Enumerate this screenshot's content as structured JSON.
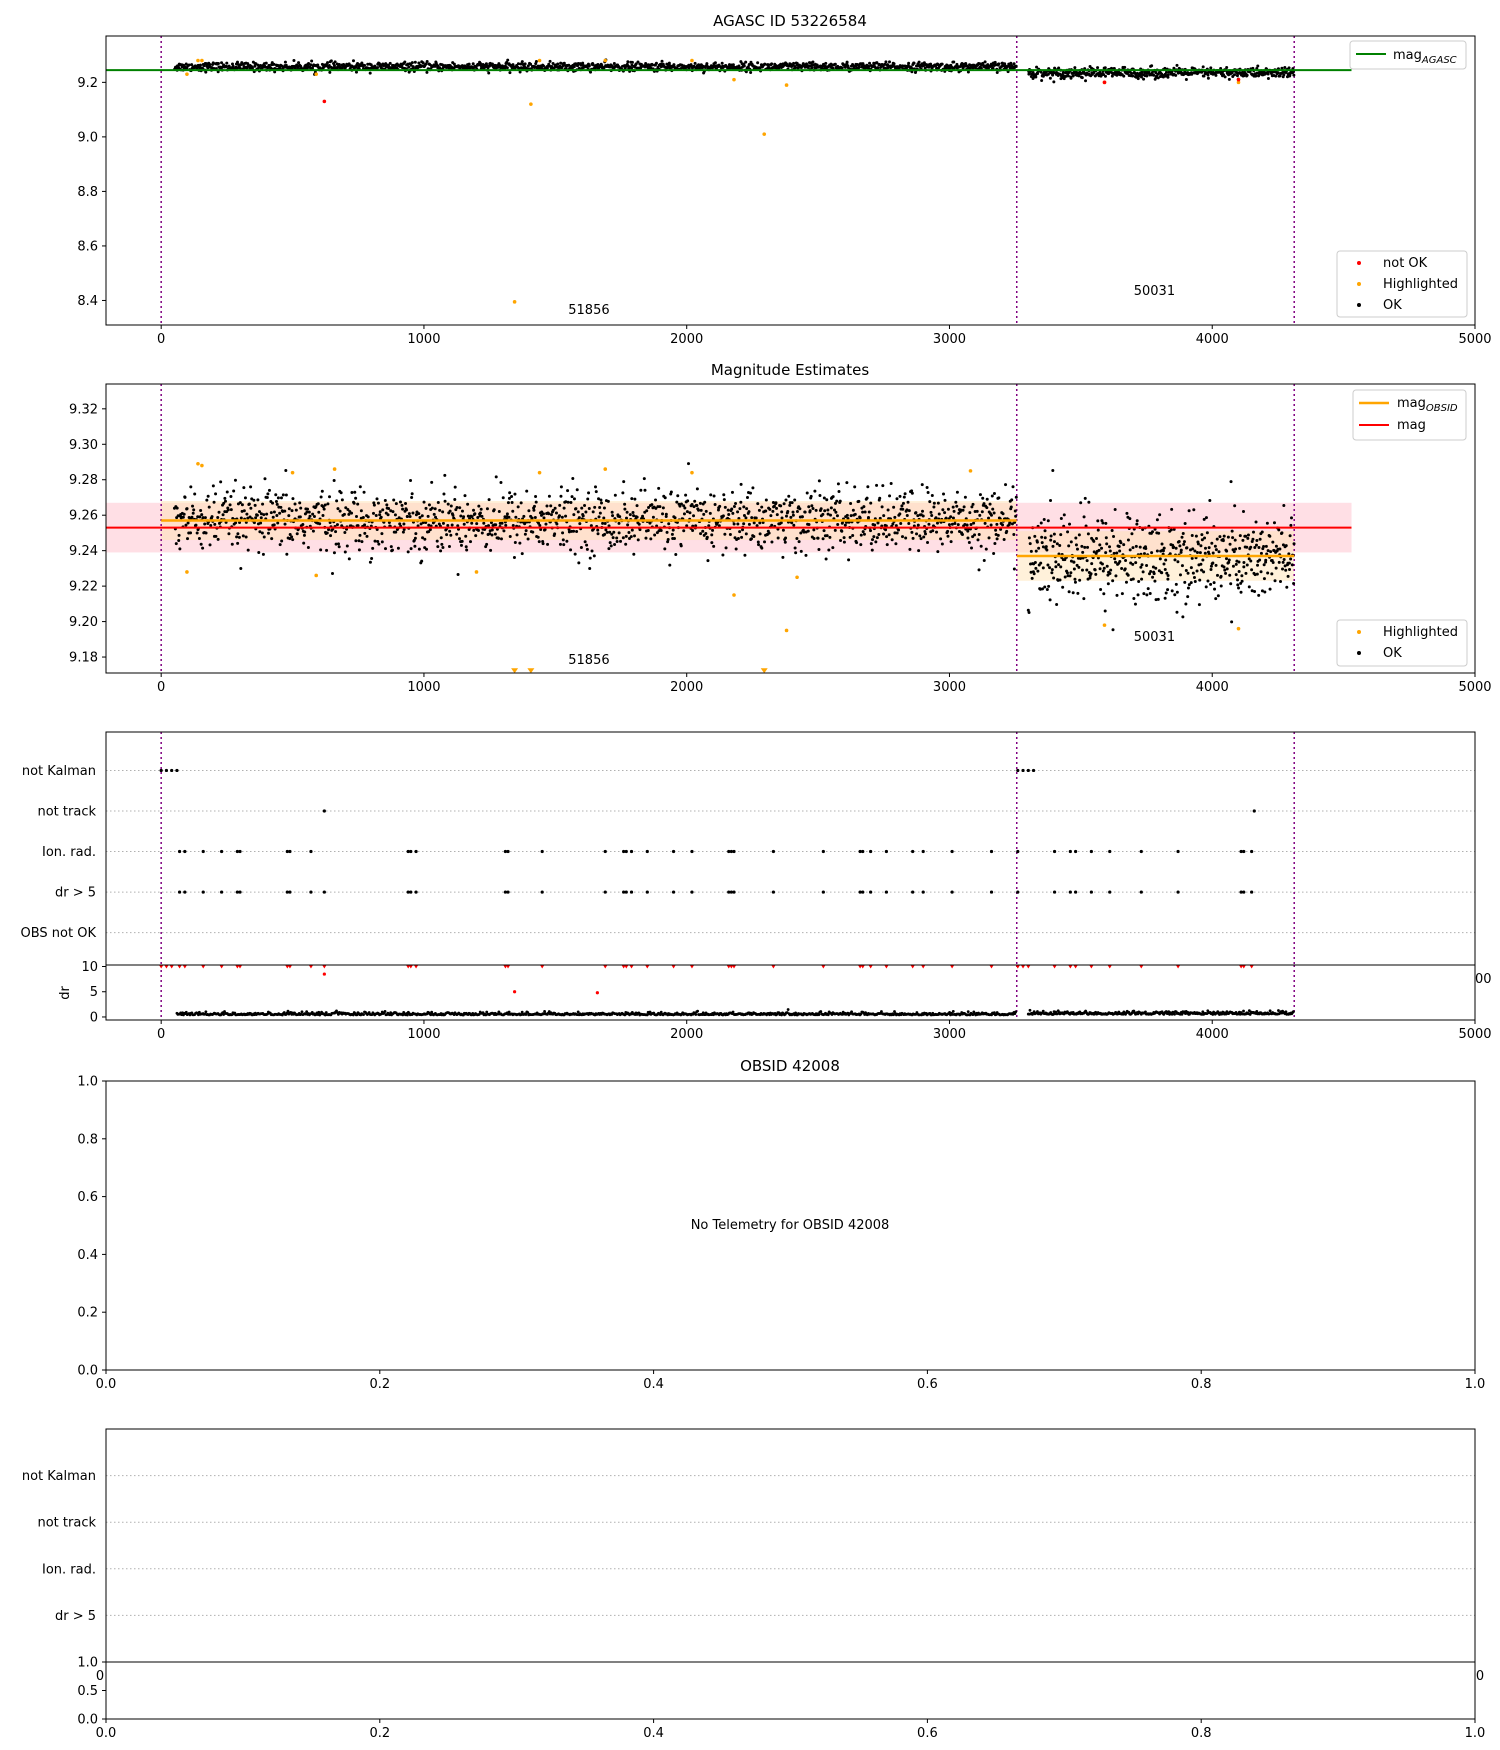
{
  "figure": {
    "background": "#ffffff"
  },
  "colors": {
    "ok": "#000000",
    "not_ok": "#ff0000",
    "highlighted": "#ffa500",
    "mag_agasc": "#008000",
    "mag": "#ff0000",
    "mag_obsid": "#ffa500",
    "vline": "#800080",
    "band_mag": "#ffc0cb",
    "band_obsid": "#ffe4b5",
    "grid": "#b0b0b0"
  },
  "chart_data": [
    {
      "type": "scatter",
      "title": "AGASC ID 53226584",
      "xlim": [
        -210,
        5000
      ],
      "ylim": [
        8.31,
        9.37
      ],
      "xticks": [
        0,
        1000,
        2000,
        3000,
        4000,
        5000
      ],
      "yticks": [
        8.4,
        8.6,
        8.8,
        9.0,
        9.2
      ],
      "vlines": [
        0,
        3256,
        4312
      ],
      "obsid_labels": [
        {
          "text": "51856",
          "x": 1628,
          "y": 8.35
        },
        {
          "text": "50031",
          "x": 3780,
          "y": 8.42
        }
      ],
      "lines": [
        {
          "name": "mag_AGASC",
          "y": 9.245,
          "x_range": [
            -210,
            4530
          ]
        }
      ],
      "segments": [
        {
          "x_range": [
            50,
            3256
          ],
          "mean": 9.257,
          "std": 0.008
        },
        {
          "x_range": [
            3300,
            4312
          ],
          "mean": 9.235,
          "std": 0.01
        }
      ],
      "series": [
        {
          "name": "not OK",
          "points": [
            [
              621,
              9.13
            ],
            [
              3590,
              9.2
            ],
            [
              4100,
              9.21
            ]
          ]
        },
        {
          "name": "Highlighted",
          "points": [
            [
              98,
              9.23
            ],
            [
              140,
              9.28
            ],
            [
              155,
              9.28
            ],
            [
              590,
              9.23
            ],
            [
              1345,
              8.395
            ],
            [
              1407,
              9.12
            ],
            [
              1440,
              9.28
            ],
            [
              1690,
              9.28
            ],
            [
              2020,
              9.28
            ],
            [
              2180,
              9.21
            ],
            [
              2295,
              9.01
            ],
            [
              2380,
              9.19
            ],
            [
              3590,
              9.2
            ],
            [
              4100,
              9.2
            ]
          ]
        },
        {
          "name": "OK",
          "points": []
        }
      ],
      "legend": {
        "upper": [
          {
            "label": "mag",
            "subscript": "AGASC",
            "kind": "line",
            "color_key": "mag_agasc"
          }
        ],
        "lower": [
          {
            "label": "not OK",
            "kind": "dot",
            "color_key": "not_ok"
          },
          {
            "label": "Highlighted",
            "kind": "dot",
            "color_key": "highlighted"
          },
          {
            "label": "OK",
            "kind": "dot",
            "color_key": "ok"
          }
        ]
      }
    },
    {
      "type": "scatter",
      "title": "Magnitude Estimates",
      "xlim": [
        -210,
        5000
      ],
      "ylim": [
        9.171,
        9.334
      ],
      "xticks": [
        0,
        1000,
        2000,
        3000,
        4000,
        5000
      ],
      "yticks": [
        9.18,
        9.2,
        9.22,
        9.24,
        9.26,
        9.28,
        9.3,
        9.32
      ],
      "vlines": [
        0,
        3256,
        4312
      ],
      "obsid_labels": [
        {
          "text": "51856",
          "x": 1628,
          "y": 9.176
        },
        {
          "text": "50031",
          "x": 3780,
          "y": 9.189
        }
      ],
      "lines": [
        {
          "name": "mag",
          "y": 9.253,
          "x_range": [
            -210,
            4530
          ],
          "band": [
            9.239,
            9.267
          ]
        },
        {
          "name": "mag_OBSID",
          "y": 9.257,
          "x_range": [
            0,
            3256
          ],
          "band": [
            9.246,
            9.268
          ]
        },
        {
          "name": "mag_OBSID",
          "y": 9.237,
          "x_range": [
            3256,
            4312
          ],
          "band": [
            9.223,
            9.251
          ]
        }
      ],
      "segments": [
        {
          "x_range": [
            50,
            3256
          ],
          "mean": 9.257,
          "std": 0.009
        },
        {
          "x_range": [
            3300,
            4312
          ],
          "mean": 9.236,
          "std": 0.013
        }
      ],
      "series": [
        {
          "name": "Highlighted",
          "points": [
            [
              98,
              9.228
            ],
            [
              140,
              9.289
            ],
            [
              155,
              9.288
            ],
            [
              500,
              9.284
            ],
            [
              590,
              9.226
            ],
            [
              660,
              9.286
            ],
            [
              1200,
              9.228
            ],
            [
              1440,
              9.284
            ],
            [
              1690,
              9.286
            ],
            [
              2020,
              9.284
            ],
            [
              2180,
              9.215
            ],
            [
              2380,
              9.195
            ],
            [
              2420,
              9.225
            ],
            [
              3080,
              9.285
            ],
            [
              3590,
              9.198
            ],
            [
              4100,
              9.196
            ]
          ]
        },
        {
          "name": "Highlighted (clipped)",
          "points": [
            [
              1345,
              9.172
            ],
            [
              1407,
              9.172
            ],
            [
              2295,
              9.172
            ]
          ]
        },
        {
          "name": "OK",
          "points": []
        }
      ],
      "legend": {
        "upper": [
          {
            "label": "mag",
            "subscript": "OBSID",
            "kind": "line",
            "color_key": "mag_obsid"
          },
          {
            "label": "mag",
            "kind": "line",
            "color_key": "mag"
          }
        ],
        "lower": [
          {
            "label": "Highlighted",
            "kind": "dot",
            "color_key": "highlighted"
          },
          {
            "label": "OK",
            "kind": "dot",
            "color_key": "ok"
          }
        ]
      }
    },
    {
      "type": "scatter",
      "title": "",
      "xlim": [
        -210,
        5000
      ],
      "categories": [
        "not Kalman",
        "not track",
        "Ion. rad.",
        "dr > 5",
        "OBS not OK"
      ],
      "vlines": [
        0,
        3256,
        4312
      ],
      "series": [
        {
          "name": "not Kalman",
          "points": [
            [
              0,
              1
            ],
            [
              20,
              1
            ],
            [
              40,
              1
            ],
            [
              60,
              1
            ],
            [
              3260,
              1
            ],
            [
              3280,
              1
            ],
            [
              3300,
              1
            ],
            [
              3320,
              1
            ]
          ]
        },
        {
          "name": "not track",
          "points": [
            [
              621,
              1
            ],
            [
              4160,
              1
            ]
          ]
        },
        {
          "name": "Ion. rad.",
          "x": [
            70,
            90,
            160,
            230,
            290,
            300,
            480,
            490,
            570,
            940,
            950,
            970,
            1310,
            1320,
            1450,
            1690,
            1760,
            1770,
            1790,
            1850,
            1950,
            2020,
            2160,
            2170,
            2180,
            2330,
            2520,
            2660,
            2670,
            2700,
            2760,
            2860,
            2900,
            3010,
            3160,
            3260,
            3400,
            3460,
            3480,
            3540,
            3610,
            3730,
            3870,
            4110,
            4120,
            4150
          ]
        },
        {
          "name": "dr > 5",
          "x": [
            70,
            90,
            160,
            230,
            290,
            300,
            480,
            490,
            570,
            621,
            940,
            950,
            970,
            1310,
            1320,
            1450,
            1690,
            1760,
            1770,
            1790,
            1850,
            1950,
            2020,
            2160,
            2170,
            2180,
            2330,
            2520,
            2660,
            2670,
            2700,
            2760,
            2860,
            2900,
            3010,
            3160,
            3260,
            3400,
            3460,
            3480,
            3540,
            3610,
            3730,
            3870,
            4110,
            4120,
            4150
          ]
        },
        {
          "name": "OBS not OK",
          "x": []
        }
      ]
    },
    {
      "type": "scatter",
      "title": "",
      "ylabel": "dr",
      "xlim": [
        -210,
        5000
      ],
      "ylim": [
        -0.6,
        10.3
      ],
      "xticks": [
        0,
        1000,
        2000,
        3000,
        4000,
        5000
      ],
      "yticks": [
        0,
        5,
        10
      ],
      "vlines": [
        0,
        3256,
        4312
      ],
      "series": [
        {
          "name": "dr > 5 (red)",
          "points": [
            [
              621,
              8.5
            ],
            [
              1345,
              5.0
            ],
            [
              1660,
              4.8
            ]
          ]
        },
        {
          "name": "dr (ok)",
          "points": []
        }
      ],
      "ghost_tick_label": "00"
    },
    {
      "type": "scatter",
      "title": "OBSID 42008",
      "xlim": [
        0,
        1
      ],
      "ylim": [
        0,
        1
      ],
      "xticks": [
        0.0,
        0.2,
        0.4,
        0.6,
        0.8,
        1.0
      ],
      "yticks": [
        0.0,
        0.2,
        0.4,
        0.6,
        0.8,
        1.0
      ],
      "annotation": "No Telemetry for OBSID 42008",
      "series": []
    },
    {
      "type": "scatter",
      "title": "",
      "categories": [
        "not Kalman",
        "not track",
        "Ion. rad.",
        "dr > 5"
      ],
      "series": []
    },
    {
      "type": "scatter",
      "title": "",
      "xlim": [
        0,
        1
      ],
      "ylim": [
        0,
        1
      ],
      "xticks": [
        0.0,
        0.2,
        0.4,
        0.6,
        0.8,
        1.0
      ],
      "yticks": [
        0.0,
        0.5,
        1.0
      ],
      "series": [],
      "ghost_tick_labels": [
        "0",
        "0"
      ]
    }
  ],
  "tick_labels": {
    "p1_x": [
      "0",
      "1000",
      "2000",
      "3000",
      "4000",
      "5000"
    ],
    "p1_y": [
      "8.4",
      "8.6",
      "8.8",
      "9.0",
      "9.2"
    ],
    "p2_x": [
      "0",
      "1000",
      "2000",
      "3000",
      "4000",
      "5000"
    ],
    "p2_y": [
      "9.18",
      "9.20",
      "9.22",
      "9.24",
      "9.26",
      "9.28",
      "9.30",
      "9.32"
    ],
    "p4_x": [
      "0",
      "1000",
      "2000",
      "3000",
      "4000",
      "5000"
    ],
    "p4_y": [
      "0",
      "5",
      "10"
    ],
    "p5_x": [
      "0.0",
      "0.2",
      "0.4",
      "0.6",
      "0.8",
      "1.0"
    ],
    "p5_y": [
      "0.0",
      "0.2",
      "0.4",
      "0.6",
      "0.8",
      "1.0"
    ],
    "p7_x": [
      "0.0",
      "0.2",
      "0.4",
      "0.6",
      "0.8",
      "1.0"
    ],
    "p7_y": [
      "0.0",
      "0.5",
      "1.0"
    ]
  }
}
